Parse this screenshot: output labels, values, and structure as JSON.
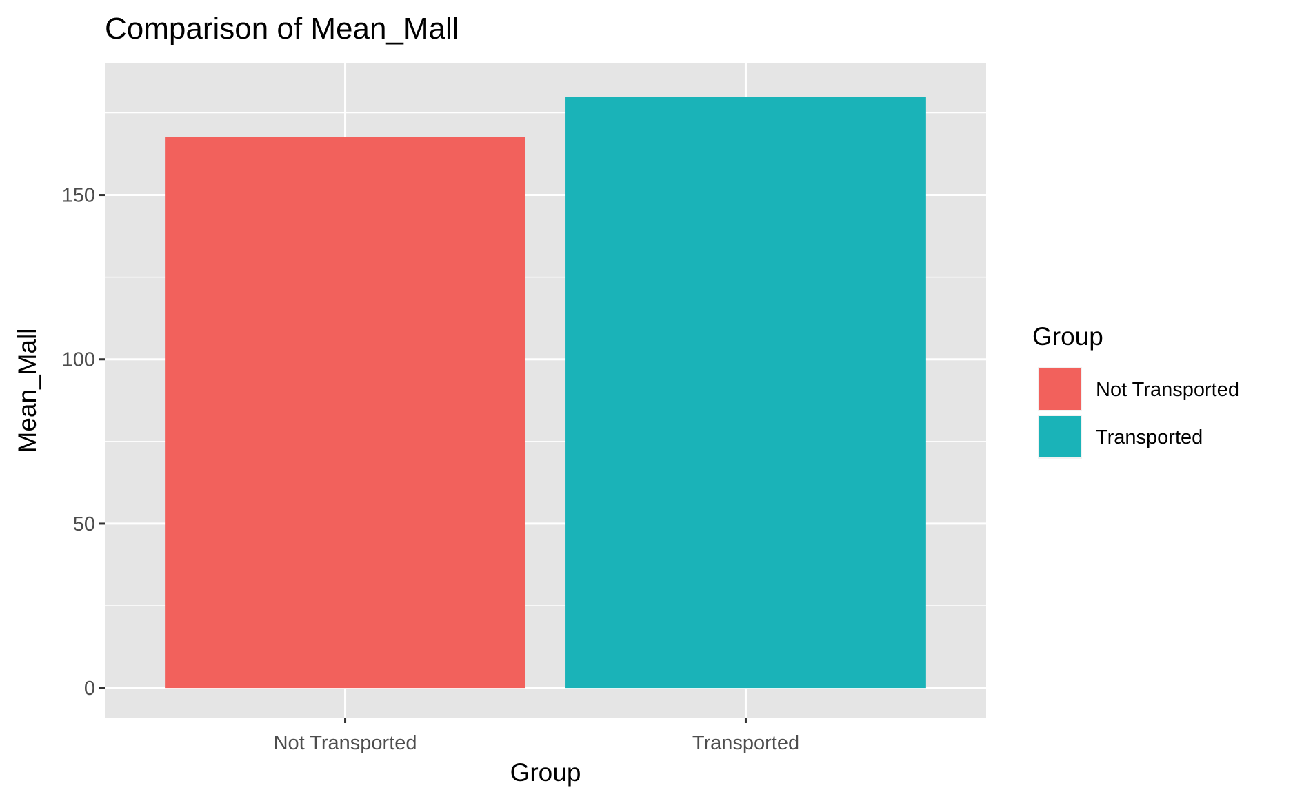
{
  "chart_data": {
    "type": "bar",
    "title": "Comparison of Mean_Mall",
    "xlabel": "Group",
    "ylabel": "Mean_Mall",
    "categories": [
      "Not Transported",
      "Transported"
    ],
    "values": [
      167.6,
      179.8
    ],
    "colors": [
      "#F2615C",
      "#1AB3B8"
    ],
    "ylim": [
      -9,
      190
    ],
    "yticks": [
      0,
      50,
      100,
      150
    ],
    "ytick_labels": [
      "0",
      "50",
      "100",
      "150"
    ],
    "grid": true,
    "panel_background": "#E5E5E5",
    "legend": {
      "title": "Group",
      "position": "right",
      "entries": [
        "Not Transported",
        "Transported"
      ]
    }
  }
}
